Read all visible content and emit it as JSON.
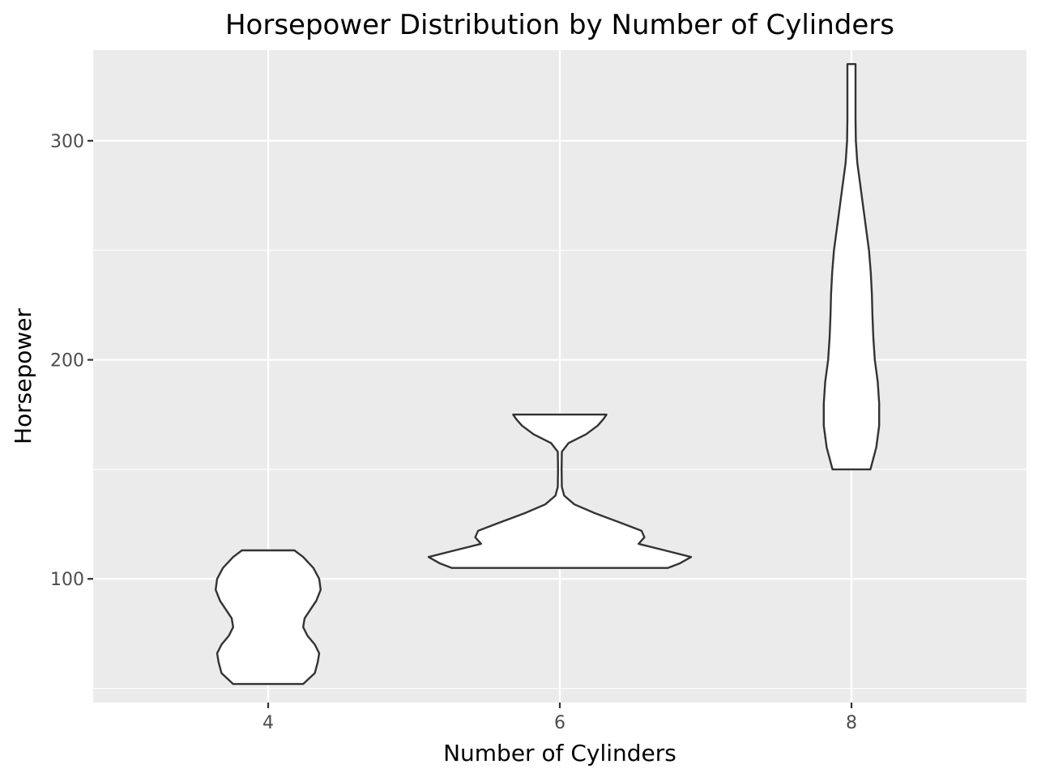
{
  "chart_data": {
    "type": "violin",
    "title": "Horsepower Distribution by Number of Cylinders",
    "xlabel": "Number of Cylinders",
    "ylabel": "Horsepower",
    "categories": [
      "4",
      "6",
      "8"
    ],
    "y_ticks": [
      100,
      200,
      300
    ],
    "ylim": [
      43.55,
      341.35
    ],
    "grid": true,
    "legend": "none",
    "panel_background": "#ebebeb",
    "violin_fill": "#ffffff",
    "violin_outline": "#333333",
    "violins": [
      {
        "category": "4",
        "min": 52,
        "max": 113,
        "profile": [
          [
            52,
            0.12
          ],
          [
            57,
            0.16
          ],
          [
            62,
            0.17
          ],
          [
            66,
            0.175
          ],
          [
            70,
            0.16
          ],
          [
            74,
            0.135
          ],
          [
            78,
            0.12
          ],
          [
            82,
            0.125
          ],
          [
            86,
            0.145
          ],
          [
            90,
            0.165
          ],
          [
            95,
            0.18
          ],
          [
            100,
            0.175
          ],
          [
            105,
            0.155
          ],
          [
            110,
            0.12
          ],
          [
            113,
            0.09
          ]
        ]
      },
      {
        "category": "6",
        "min": 105,
        "max": 175,
        "profile": [
          [
            105,
            0.37
          ],
          [
            107,
            0.41
          ],
          [
            110,
            0.45
          ],
          [
            113,
            0.36
          ],
          [
            116,
            0.27
          ],
          [
            119,
            0.29
          ],
          [
            122,
            0.28
          ],
          [
            126,
            0.2
          ],
          [
            130,
            0.12
          ],
          [
            134,
            0.05
          ],
          [
            138,
            0.015
          ],
          [
            142,
            0.007
          ],
          [
            150,
            0.006
          ],
          [
            158,
            0.007
          ],
          [
            162,
            0.03
          ],
          [
            166,
            0.09
          ],
          [
            170,
            0.13
          ],
          [
            173,
            0.15
          ],
          [
            175,
            0.16
          ]
        ]
      },
      {
        "category": "8",
        "min": 150,
        "max": 335,
        "profile": [
          [
            150,
            0.065
          ],
          [
            160,
            0.085
          ],
          [
            170,
            0.095
          ],
          [
            180,
            0.095
          ],
          [
            190,
            0.09
          ],
          [
            200,
            0.08
          ],
          [
            210,
            0.075
          ],
          [
            220,
            0.072
          ],
          [
            230,
            0.07
          ],
          [
            240,
            0.066
          ],
          [
            250,
            0.06
          ],
          [
            260,
            0.05
          ],
          [
            270,
            0.04
          ],
          [
            280,
            0.03
          ],
          [
            290,
            0.02
          ],
          [
            300,
            0.015
          ],
          [
            310,
            0.014
          ],
          [
            320,
            0.014
          ],
          [
            335,
            0.014
          ]
        ]
      }
    ]
  }
}
